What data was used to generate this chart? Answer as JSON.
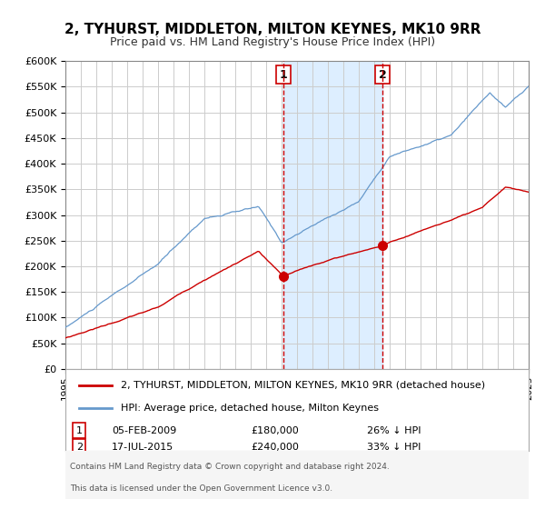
{
  "title": "2, TYHURST, MIDDLETON, MILTON KEYNES, MK10 9RR",
  "subtitle": "Price paid vs. HM Land Registry's House Price Index (HPI)",
  "legend_line1": "2, TYHURST, MIDDLETON, MILTON KEYNES, MK10 9RR (detached house)",
  "legend_line2": "HPI: Average price, detached house, Milton Keynes",
  "sale1_date": "05-FEB-2009",
  "sale1_price": "£180,000",
  "sale1_hpi": "26% ↓ HPI",
  "sale2_date": "17-JUL-2015",
  "sale2_price": "£240,000",
  "sale2_hpi": "33% ↓ HPI",
  "event1_label": "1",
  "event2_label": "2",
  "event1_x": 2009.1,
  "event2_x": 2015.54,
  "event1_y_red": 180000,
  "event2_y_red": 240000,
  "xmin": 1995,
  "xmax": 2025,
  "ymin": 0,
  "ymax": 600000,
  "red_color": "#cc0000",
  "blue_color": "#6699cc",
  "shade_color": "#ddeeff",
  "background_color": "#f5f5f5",
  "grid_color": "#cccccc",
  "footnote1": "Contains HM Land Registry data © Crown copyright and database right 2024.",
  "footnote2": "This data is licensed under the Open Government Licence v3.0."
}
